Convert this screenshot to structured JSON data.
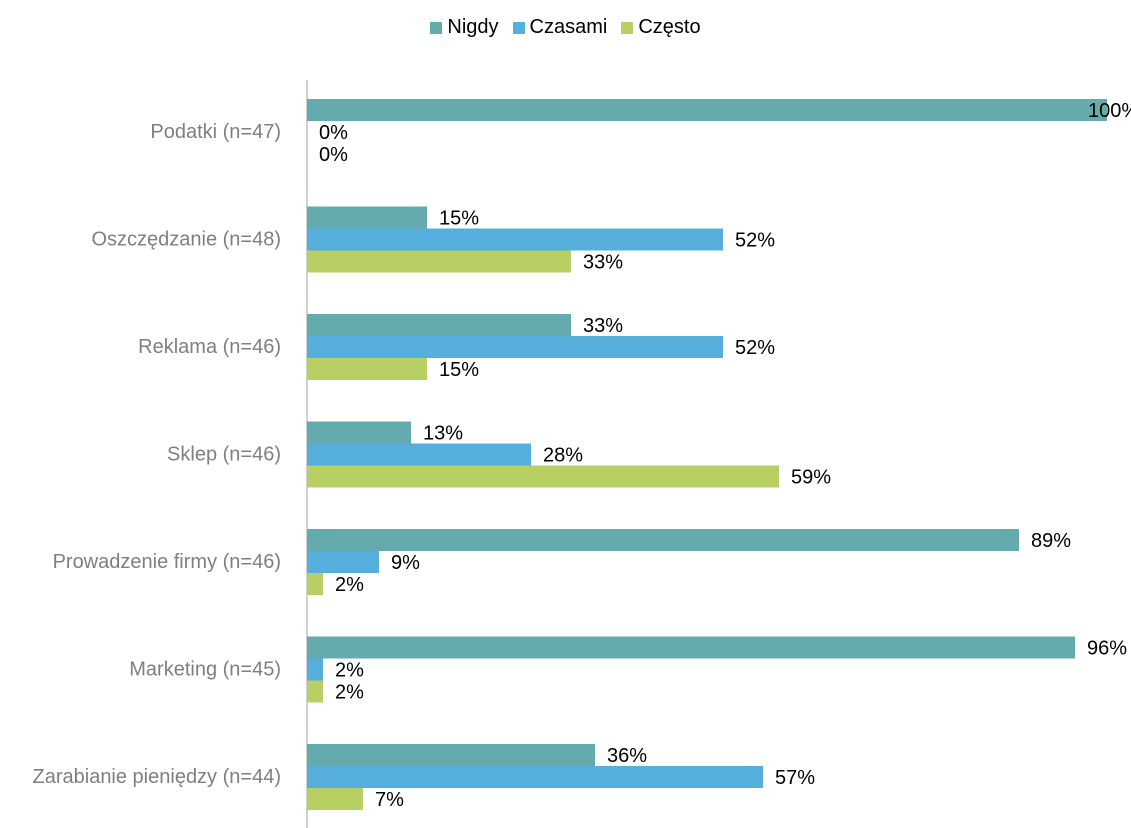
{
  "chart_data": {
    "type": "bar",
    "orientation": "horizontal",
    "categories": [
      "Podatki (n=47)",
      "Oszczędzanie (n=48)",
      "Reklama (n=46)",
      "Sklep (n=46)",
      "Prowadzenie firmy (n=46)",
      "Marketing (n=45)",
      "Zarabianie pieniędzy (n=44)"
    ],
    "series": [
      {
        "name": "Nigdy",
        "color": "#63ABAD",
        "values": [
          100,
          15,
          33,
          13,
          89,
          96,
          36
        ]
      },
      {
        "name": "Czasami",
        "color": "#55AEDC",
        "values": [
          0,
          52,
          52,
          28,
          9,
          2,
          57
        ]
      },
      {
        "name": "Często",
        "color": "#B8CF63",
        "values": [
          0,
          33,
          15,
          59,
          2,
          2,
          7
        ]
      }
    ],
    "value_suffix": "%",
    "xlim": [
      0,
      100
    ],
    "grid": false,
    "legend_position": "top-center",
    "title": "",
    "xlabel": "",
    "ylabel": ""
  }
}
